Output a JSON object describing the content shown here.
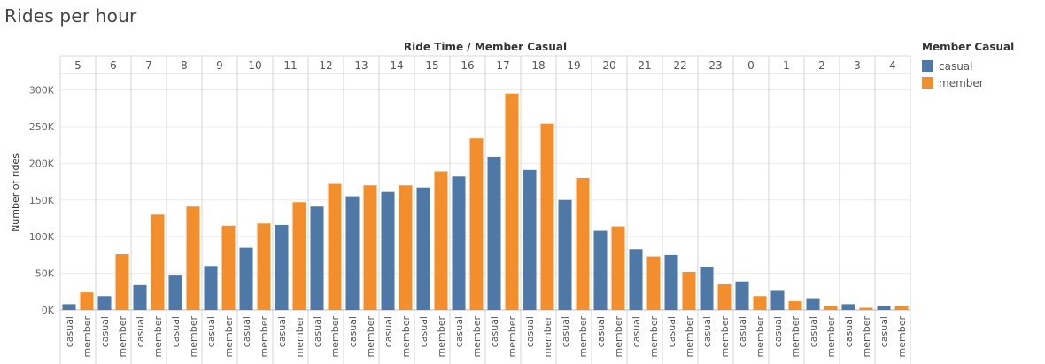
{
  "page_title": "Rides per hour",
  "chart_data": {
    "type": "bar",
    "title": "Rides per hour",
    "column_header": "Ride Time  /  Member Casual",
    "ylabel": "Number of rides",
    "ylim": [
      0,
      320000
    ],
    "yticks": [
      0,
      50000,
      100000,
      150000,
      200000,
      250000,
      300000
    ],
    "ytick_labels": [
      "0K",
      "50K",
      "100K",
      "150K",
      "200K",
      "250K",
      "300K"
    ],
    "hours": [
      "5",
      "6",
      "7",
      "8",
      "9",
      "10",
      "11",
      "12",
      "13",
      "14",
      "15",
      "16",
      "17",
      "18",
      "19",
      "20",
      "21",
      "22",
      "23",
      "0",
      "1",
      "2",
      "3",
      "4"
    ],
    "series": [
      {
        "name": "casual",
        "color": "#4e79a7",
        "values": [
          8000,
          19000,
          34000,
          47000,
          60000,
          85000,
          116000,
          141000,
          155000,
          161000,
          167000,
          182000,
          209000,
          191000,
          150000,
          108000,
          83000,
          75000,
          59000,
          39000,
          26000,
          15000,
          8000,
          6000
        ]
      },
      {
        "name": "member",
        "color": "#f28e2b",
        "values": [
          24000,
          76000,
          130000,
          141000,
          115000,
          118000,
          147000,
          172000,
          170000,
          170000,
          189000,
          234000,
          295000,
          254000,
          180000,
          114000,
          73000,
          52000,
          35000,
          19000,
          12000,
          6000,
          3000,
          6000
        ]
      }
    ],
    "legend": {
      "title": "Member Casual",
      "position": "right"
    },
    "grid": true
  }
}
